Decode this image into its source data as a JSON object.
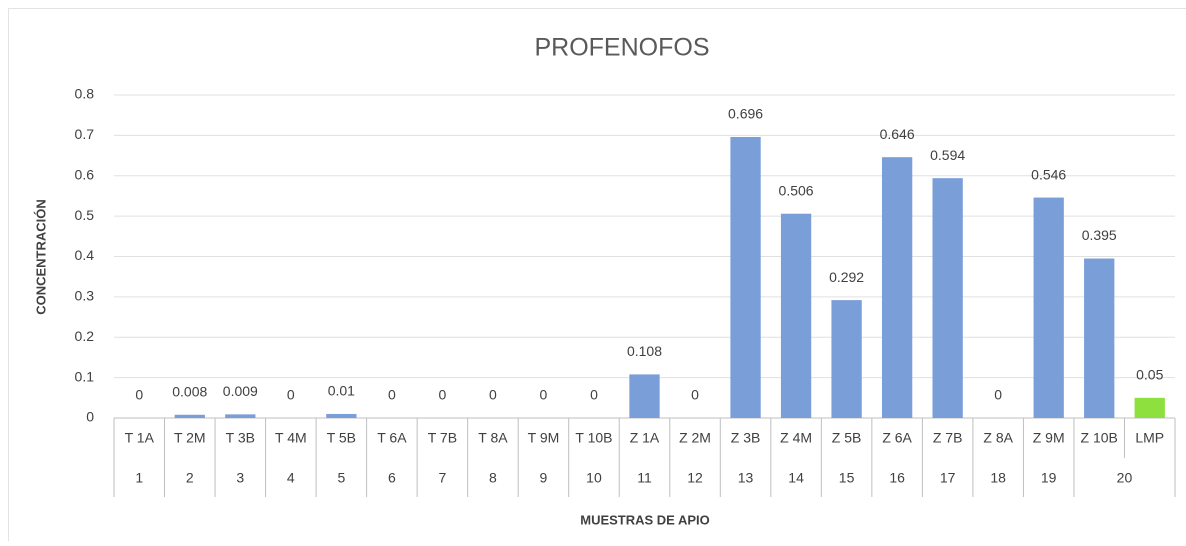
{
  "chart_data": {
    "type": "bar",
    "title": "PROFENOFOS",
    "x_label": "MUESTRAS DE APIO",
    "y_label": "CONCENTRACIÓN",
    "categories": [
      "T 1A",
      "T 2M",
      "T 3B",
      "T 4M",
      "T 5B",
      "T 6A",
      "T 7B",
      "T 8A",
      "T 9M",
      "T 10B",
      "Z 1A",
      "Z 2M",
      "Z 3B",
      "Z 4M",
      "Z 5B",
      "Z 6A",
      "Z 7B",
      "Z 8A",
      "Z 9M",
      "Z 10B",
      "LMP"
    ],
    "groups": [
      {
        "label": "1",
        "span": 1
      },
      {
        "label": "2",
        "span": 1
      },
      {
        "label": "3",
        "span": 1
      },
      {
        "label": "4",
        "span": 1
      },
      {
        "label": "5",
        "span": 1
      },
      {
        "label": "6",
        "span": 1
      },
      {
        "label": "7",
        "span": 1
      },
      {
        "label": "8",
        "span": 1
      },
      {
        "label": "9",
        "span": 1
      },
      {
        "label": "10",
        "span": 1
      },
      {
        "label": "11",
        "span": 1
      },
      {
        "label": "12",
        "span": 1
      },
      {
        "label": "13",
        "span": 1
      },
      {
        "label": "14",
        "span": 1
      },
      {
        "label": "15",
        "span": 1
      },
      {
        "label": "16",
        "span": 1
      },
      {
        "label": "17",
        "span": 1
      },
      {
        "label": "18",
        "span": 1
      },
      {
        "label": "19",
        "span": 1
      },
      {
        "label": "20",
        "span": 2
      }
    ],
    "values": [
      0,
      0.008,
      0.009,
      0,
      0.01,
      0,
      0,
      0,
      0,
      0,
      0.108,
      0,
      0.696,
      0.506,
      0.292,
      0.646,
      0.594,
      0,
      0.546,
      0.395,
      0.05
    ],
    "colors": [
      "#7a9fd8",
      "#7a9fd8",
      "#7a9fd8",
      "#7a9fd8",
      "#7a9fd8",
      "#7a9fd8",
      "#7a9fd8",
      "#7a9fd8",
      "#7a9fd8",
      "#7a9fd8",
      "#7a9fd8",
      "#7a9fd8",
      "#7a9fd8",
      "#7a9fd8",
      "#7a9fd8",
      "#7a9fd8",
      "#7a9fd8",
      "#7a9fd8",
      "#7a9fd8",
      "#7a9fd8",
      "#8ee03e"
    ],
    "ylim": [
      0,
      0.8
    ],
    "yticks": [
      0,
      0.1,
      0.2,
      0.3,
      0.4,
      0.5,
      0.6,
      0.7,
      0.8
    ],
    "grid": true
  }
}
